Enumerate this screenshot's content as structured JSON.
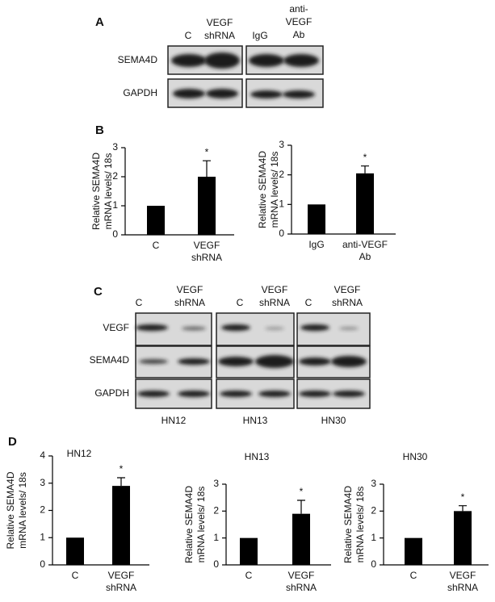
{
  "panels": [
    "A",
    "B",
    "C",
    "D"
  ],
  "blot_a": {
    "columns": [
      [
        "C"
      ],
      [
        "VEGF",
        "shRNA"
      ],
      [
        "IgG"
      ],
      [
        "anti-",
        "VEGF",
        "Ab"
      ]
    ],
    "rows": [
      "SEMA4D",
      "GAPDH"
    ]
  },
  "blot_c": {
    "columns": [
      [
        "C"
      ],
      [
        "VEGF",
        "shRNA"
      ],
      [
        "C"
      ],
      [
        "VEGF",
        "shRNA"
      ],
      [
        "C"
      ],
      [
        "VEGF",
        "shRNA"
      ]
    ],
    "rows": [
      "VEGF",
      "SEMA4D",
      "GAPDH"
    ],
    "cell_lines": [
      "HN12",
      "HN13",
      "HN30"
    ]
  },
  "chart_data": [
    {
      "type": "bar",
      "ylabel": [
        "Relative SEMA4D",
        "mRNA levels/ 18s"
      ],
      "categories": [
        [
          "C"
        ],
        [
          "VEGF",
          "shRNA"
        ]
      ],
      "values": [
        1,
        2
      ],
      "errors": [
        null,
        0.55
      ],
      "annotation": "*",
      "color": "#000000",
      "ylim": [
        0,
        3
      ],
      "yticks": [
        0,
        1,
        2,
        3
      ]
    },
    {
      "type": "bar",
      "ylabel": [
        "Relative SEMA4D",
        "mRNA levels/ 18s"
      ],
      "categories": [
        [
          "IgG"
        ],
        [
          "anti-VEGF",
          "Ab"
        ]
      ],
      "values": [
        1,
        2.05
      ],
      "errors": [
        null,
        0.25
      ],
      "annotation": "*",
      "color": "#000000",
      "ylim": [
        0,
        3
      ],
      "yticks": [
        0,
        1,
        2,
        3
      ]
    },
    {
      "type": "bar",
      "title": "HN12",
      "ylabel": [
        "Relative SEMA4D",
        "mRNA levels/ 18s"
      ],
      "categories": [
        [
          "C"
        ],
        [
          "VEGF",
          "shRNA"
        ]
      ],
      "values": [
        1,
        2.9
      ],
      "errors": [
        null,
        0.3
      ],
      "annotation": "*",
      "color": "#000000",
      "ylim": [
        0,
        4
      ],
      "yticks": [
        0,
        1,
        2,
        3,
        4
      ]
    },
    {
      "type": "bar",
      "title": "HN13",
      "ylabel": [
        "Relative SEMA4D",
        "mRNA levels/ 18s"
      ],
      "categories": [
        [
          "C"
        ],
        [
          "VEGF",
          "shRNA"
        ]
      ],
      "values": [
        1,
        1.9
      ],
      "errors": [
        null,
        0.5
      ],
      "annotation": "*",
      "color": "#000000",
      "ylim": [
        0,
        3
      ],
      "yticks": [
        0,
        1,
        2,
        3
      ]
    },
    {
      "type": "bar",
      "title": "HN30",
      "ylabel": [
        "Relative SEMA4D",
        "mRNA levels/ 18s"
      ],
      "categories": [
        [
          "C"
        ],
        [
          "VEGF",
          "shRNA"
        ]
      ],
      "values": [
        1,
        2
      ],
      "errors": [
        null,
        0.2
      ],
      "annotation": "*",
      "color": "#000000",
      "ylim": [
        0,
        3
      ],
      "yticks": [
        0,
        1,
        2,
        3
      ]
    }
  ]
}
